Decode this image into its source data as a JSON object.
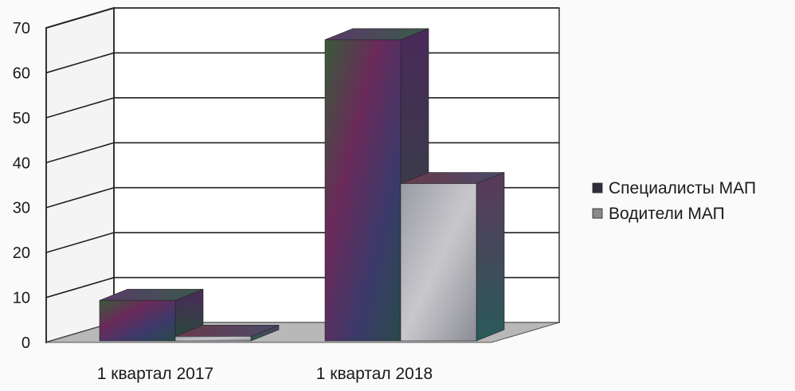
{
  "chart_data": {
    "type": "bar",
    "style": "3d-clustered-column",
    "categories": [
      "1 квартал 2017",
      "1 квартал 2018"
    ],
    "series": [
      {
        "name": "Специалисты МАП",
        "values": [
          9,
          67
        ],
        "color": "#2f2f3a"
      },
      {
        "name": "Водители МАП",
        "values": [
          1,
          35
        ],
        "color": "#8a8a8a"
      }
    ],
    "y_ticks": [
      "0",
      "10",
      "20",
      "30",
      "40",
      "50",
      "60",
      "70"
    ],
    "ylim": [
      0,
      70
    ],
    "grid": true,
    "legend_position": "right",
    "title": "",
    "xlabel": "",
    "ylabel": ""
  }
}
